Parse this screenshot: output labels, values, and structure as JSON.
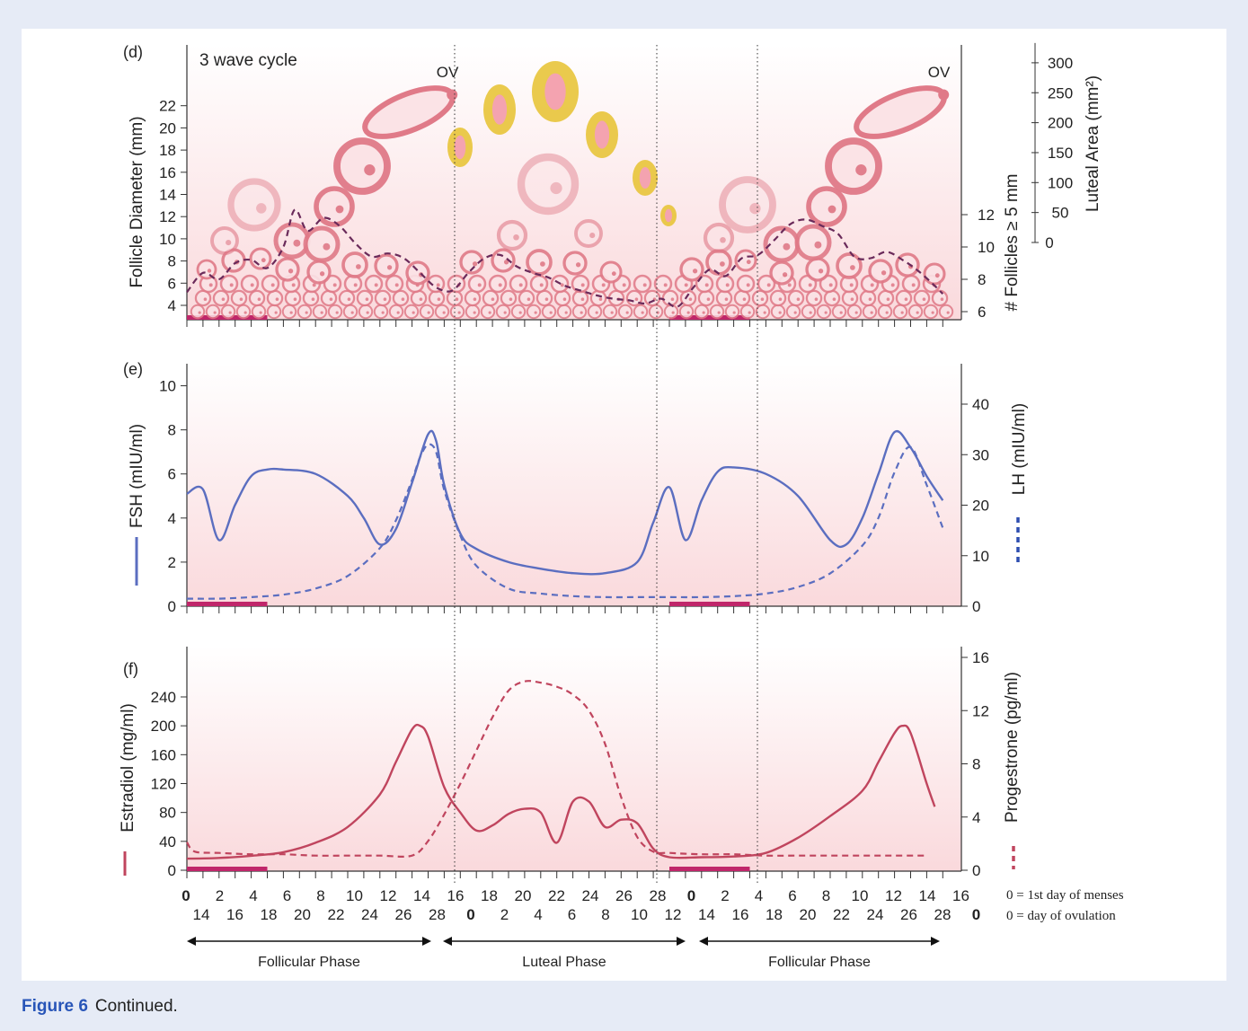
{
  "caption": {
    "label": "Figure 6",
    "text": "Continued."
  },
  "colors": {
    "fsh": "#5b6ec0",
    "estradiol": "#c0455e",
    "follicle": "#e07a88",
    "dashed_follicles": "#6a2a5a",
    "corpus_luteum": "#e8c43a",
    "menses": "#c0266a",
    "panel_bg_top": "#ffffff",
    "panel_bg_bottom": "#fbdcdf",
    "outer_bg": "#e6ebf6"
  },
  "x_axis": {
    "row1": [
      {
        "t": "0",
        "bold": true
      },
      {
        "t": "2"
      },
      {
        "t": "4"
      },
      {
        "t": "6"
      },
      {
        "t": "8"
      },
      {
        "t": "10"
      },
      {
        "t": "12"
      },
      {
        "t": "14"
      },
      {
        "t": "16"
      },
      {
        "t": "18"
      },
      {
        "t": "20"
      },
      {
        "t": "22"
      },
      {
        "t": "24"
      },
      {
        "t": "26"
      },
      {
        "t": "28"
      },
      {
        "t": "0",
        "bold": true
      },
      {
        "t": "2"
      },
      {
        "t": "4"
      },
      {
        "t": "6"
      },
      {
        "t": "8"
      },
      {
        "t": "10"
      },
      {
        "t": "12"
      },
      {
        "t": "14"
      },
      {
        "t": "16"
      }
    ],
    "row2": [
      {
        "t": "14"
      },
      {
        "t": "16"
      },
      {
        "t": "18"
      },
      {
        "t": "20"
      },
      {
        "t": "22"
      },
      {
        "t": "24"
      },
      {
        "t": "26"
      },
      {
        "t": "28"
      },
      {
        "t": "0",
        "bold": true
      },
      {
        "t": "2"
      },
      {
        "t": "4"
      },
      {
        "t": "6"
      },
      {
        "t": "8"
      },
      {
        "t": "10"
      },
      {
        "t": "12"
      },
      {
        "t": "14"
      },
      {
        "t": "16"
      },
      {
        "t": "18"
      },
      {
        "t": "20"
      },
      {
        "t": "22"
      },
      {
        "t": "24"
      },
      {
        "t": "26"
      },
      {
        "t": "28"
      },
      {
        "t": "0",
        "bold": true
      }
    ],
    "legend": [
      "0 = 1st day of menses",
      "0 = day of ovulation"
    ],
    "phases": [
      "Follicular Phase",
      "Luteal Phase",
      "Follicular Phase"
    ]
  },
  "chart_data": [
    {
      "panel": "(d)",
      "type": "line",
      "title": "3 wave cycle",
      "ovulation_label": "OV",
      "ylabel_left": "Follicle Diameter (mm)",
      "ylabel_right": "# Follicles ≥ 5 mm",
      "ylabel_right2": "Luteal Area (mm²)",
      "yticks_left": [
        4,
        6,
        8,
        10,
        12,
        14,
        16,
        18,
        20,
        22
      ],
      "yticks_right": [
        6,
        8,
        10,
        12
      ],
      "yticks_right2": [
        0,
        50,
        100,
        150,
        200,
        250,
        300
      ],
      "series": [
        {
          "legend": "# Follicles ≥ 5 mm",
          "style": "dashed",
          "x": [
            0,
            1,
            2,
            3,
            4,
            5,
            6,
            6.7,
            7.5,
            8.5,
            9.5,
            10.5,
            11.5,
            12.5,
            13.5,
            14.5,
            15.5,
            16.5,
            17.5,
            18.5,
            19.5,
            20.5,
            21.5,
            22.5,
            23.5,
            24.5,
            25.5,
            26.5,
            27.5,
            28.5,
            29.5,
            30.5,
            31.5,
            32.5,
            33.5,
            34.5,
            35.5,
            36.5,
            37.5,
            38.5,
            39.5,
            40.5,
            41.5,
            42.5,
            43.5,
            44.5,
            45.5,
            46.5,
            47
          ],
          "y": [
            7.2,
            8.4,
            8.0,
            9.0,
            9.2,
            8.7,
            10.0,
            12.3,
            11.0,
            11.8,
            11.3,
            10.2,
            9.4,
            9.6,
            9.3,
            8.4,
            7.5,
            7.3,
            8.4,
            9.3,
            9.5,
            8.8,
            8.4,
            8.1,
            7.6,
            7.3,
            7.0,
            6.8,
            6.7,
            6.5,
            6.8,
            6.3,
            7.5,
            8.6,
            8.2,
            9.3,
            9.5,
            10.4,
            11.4,
            11.7,
            11.3,
            10.8,
            9.4,
            9.3,
            9.7,
            9.2,
            8.5,
            7.6,
            7.1
          ]
        }
      ]
    },
    {
      "panel": "(e)",
      "type": "line",
      "ylabel_left": "FSH (mIU/ml)",
      "ylabel_right": "LH (mIU/ml)",
      "ylim": [
        0,
        11
      ],
      "ylim_right": [
        0,
        48
      ],
      "yticks_left": [
        0,
        2,
        4,
        6,
        8,
        10
      ],
      "yticks_right": [
        0,
        10,
        20,
        30,
        40
      ],
      "series": [
        {
          "name": "FSH",
          "axis": "left",
          "style": "solid",
          "x": [
            0,
            1,
            2,
            3,
            4,
            5,
            6,
            8,
            10,
            11,
            12,
            13,
            14,
            15,
            15.5,
            16,
            17,
            18,
            20,
            22,
            24,
            26,
            28,
            29,
            30,
            31,
            32,
            33,
            34,
            36,
            38,
            40,
            41,
            42,
            43,
            44,
            45,
            46,
            47
          ],
          "y": [
            5.1,
            5.3,
            3.0,
            4.6,
            5.9,
            6.2,
            6.2,
            6.0,
            5.0,
            4.0,
            2.8,
            3.5,
            5.6,
            7.8,
            7.5,
            5.5,
            3.3,
            2.6,
            2.0,
            1.7,
            1.5,
            1.5,
            2.0,
            3.8,
            5.4,
            3.0,
            4.8,
            6.1,
            6.3,
            6.0,
            5.0,
            3.0,
            2.8,
            4.0,
            6.0,
            7.9,
            7.2,
            5.9,
            4.8
          ]
        },
        {
          "name": "LH",
          "axis": "right",
          "style": "dashed",
          "x": [
            0,
            2,
            4,
            6,
            8,
            10,
            12,
            13,
            14,
            14.5,
            15,
            15.5,
            16,
            17,
            18,
            20,
            22,
            24,
            26,
            28,
            30,
            32,
            34,
            36,
            38,
            40,
            42,
            43,
            44,
            45,
            46,
            47
          ],
          "y": [
            1.5,
            1.5,
            1.8,
            2.3,
            3.5,
            6.0,
            11.5,
            17.0,
            25.0,
            29.5,
            32.0,
            30.5,
            23.0,
            14.0,
            8.0,
            3.5,
            2.5,
            2.0,
            1.8,
            1.8,
            1.8,
            1.8,
            2.0,
            2.5,
            3.8,
            6.5,
            12.0,
            17.5,
            26.5,
            31.5,
            24.0,
            15.5
          ]
        }
      ]
    },
    {
      "panel": "(f)",
      "type": "line",
      "ylabel_left": "Estradiol (mg/ml)",
      "ylabel_right": "Progestrone (pg/ml)",
      "ylim": [
        0,
        260
      ],
      "ylim_right": [
        0,
        16.5
      ],
      "yticks_left": [
        0,
        40,
        80,
        120,
        160,
        200,
        240
      ],
      "yticks_right": [
        0,
        4,
        8,
        12,
        16
      ],
      "series": [
        {
          "name": "Estradiol",
          "axis": "left",
          "style": "solid",
          "x": [
            0,
            2,
            4,
            6,
            8,
            10,
            12,
            13,
            14,
            14.5,
            15,
            16,
            17,
            18,
            19,
            20,
            21,
            22,
            23,
            24,
            25,
            26,
            27,
            28,
            29,
            30,
            32,
            34,
            36,
            38,
            40,
            42,
            43,
            44,
            44.5,
            45,
            46,
            46.5
          ],
          "y": [
            16,
            17,
            20,
            25,
            38,
            60,
            105,
            150,
            195,
            200,
            185,
            115,
            80,
            55,
            62,
            78,
            85,
            80,
            38,
            95,
            95,
            60,
            70,
            65,
            30,
            18,
            18,
            19,
            24,
            45,
            75,
            110,
            150,
            190,
            200,
            190,
            120,
            88
          ]
        },
        {
          "name": "Progestrone",
          "axis": "right",
          "style": "dashed",
          "x": [
            0,
            0.5,
            2,
            4,
            6,
            8,
            10,
            12,
            14,
            15,
            16,
            17,
            18,
            19,
            20,
            21,
            22,
            23,
            24,
            25,
            26,
            27,
            28,
            29,
            30,
            32,
            34,
            36,
            38,
            40,
            42,
            44,
            46
          ],
          "y": [
            2.1,
            1.4,
            1.3,
            1.2,
            1.2,
            1.1,
            1.1,
            1.1,
            1.1,
            2.2,
            4.2,
            6.5,
            9.0,
            11.5,
            13.5,
            14.2,
            14.1,
            13.8,
            13.2,
            12.0,
            9.5,
            5.5,
            2.5,
            1.4,
            1.3,
            1.2,
            1.2,
            1.1,
            1.1,
            1.1,
            1.1,
            1.1,
            1.1
          ]
        }
      ]
    }
  ]
}
